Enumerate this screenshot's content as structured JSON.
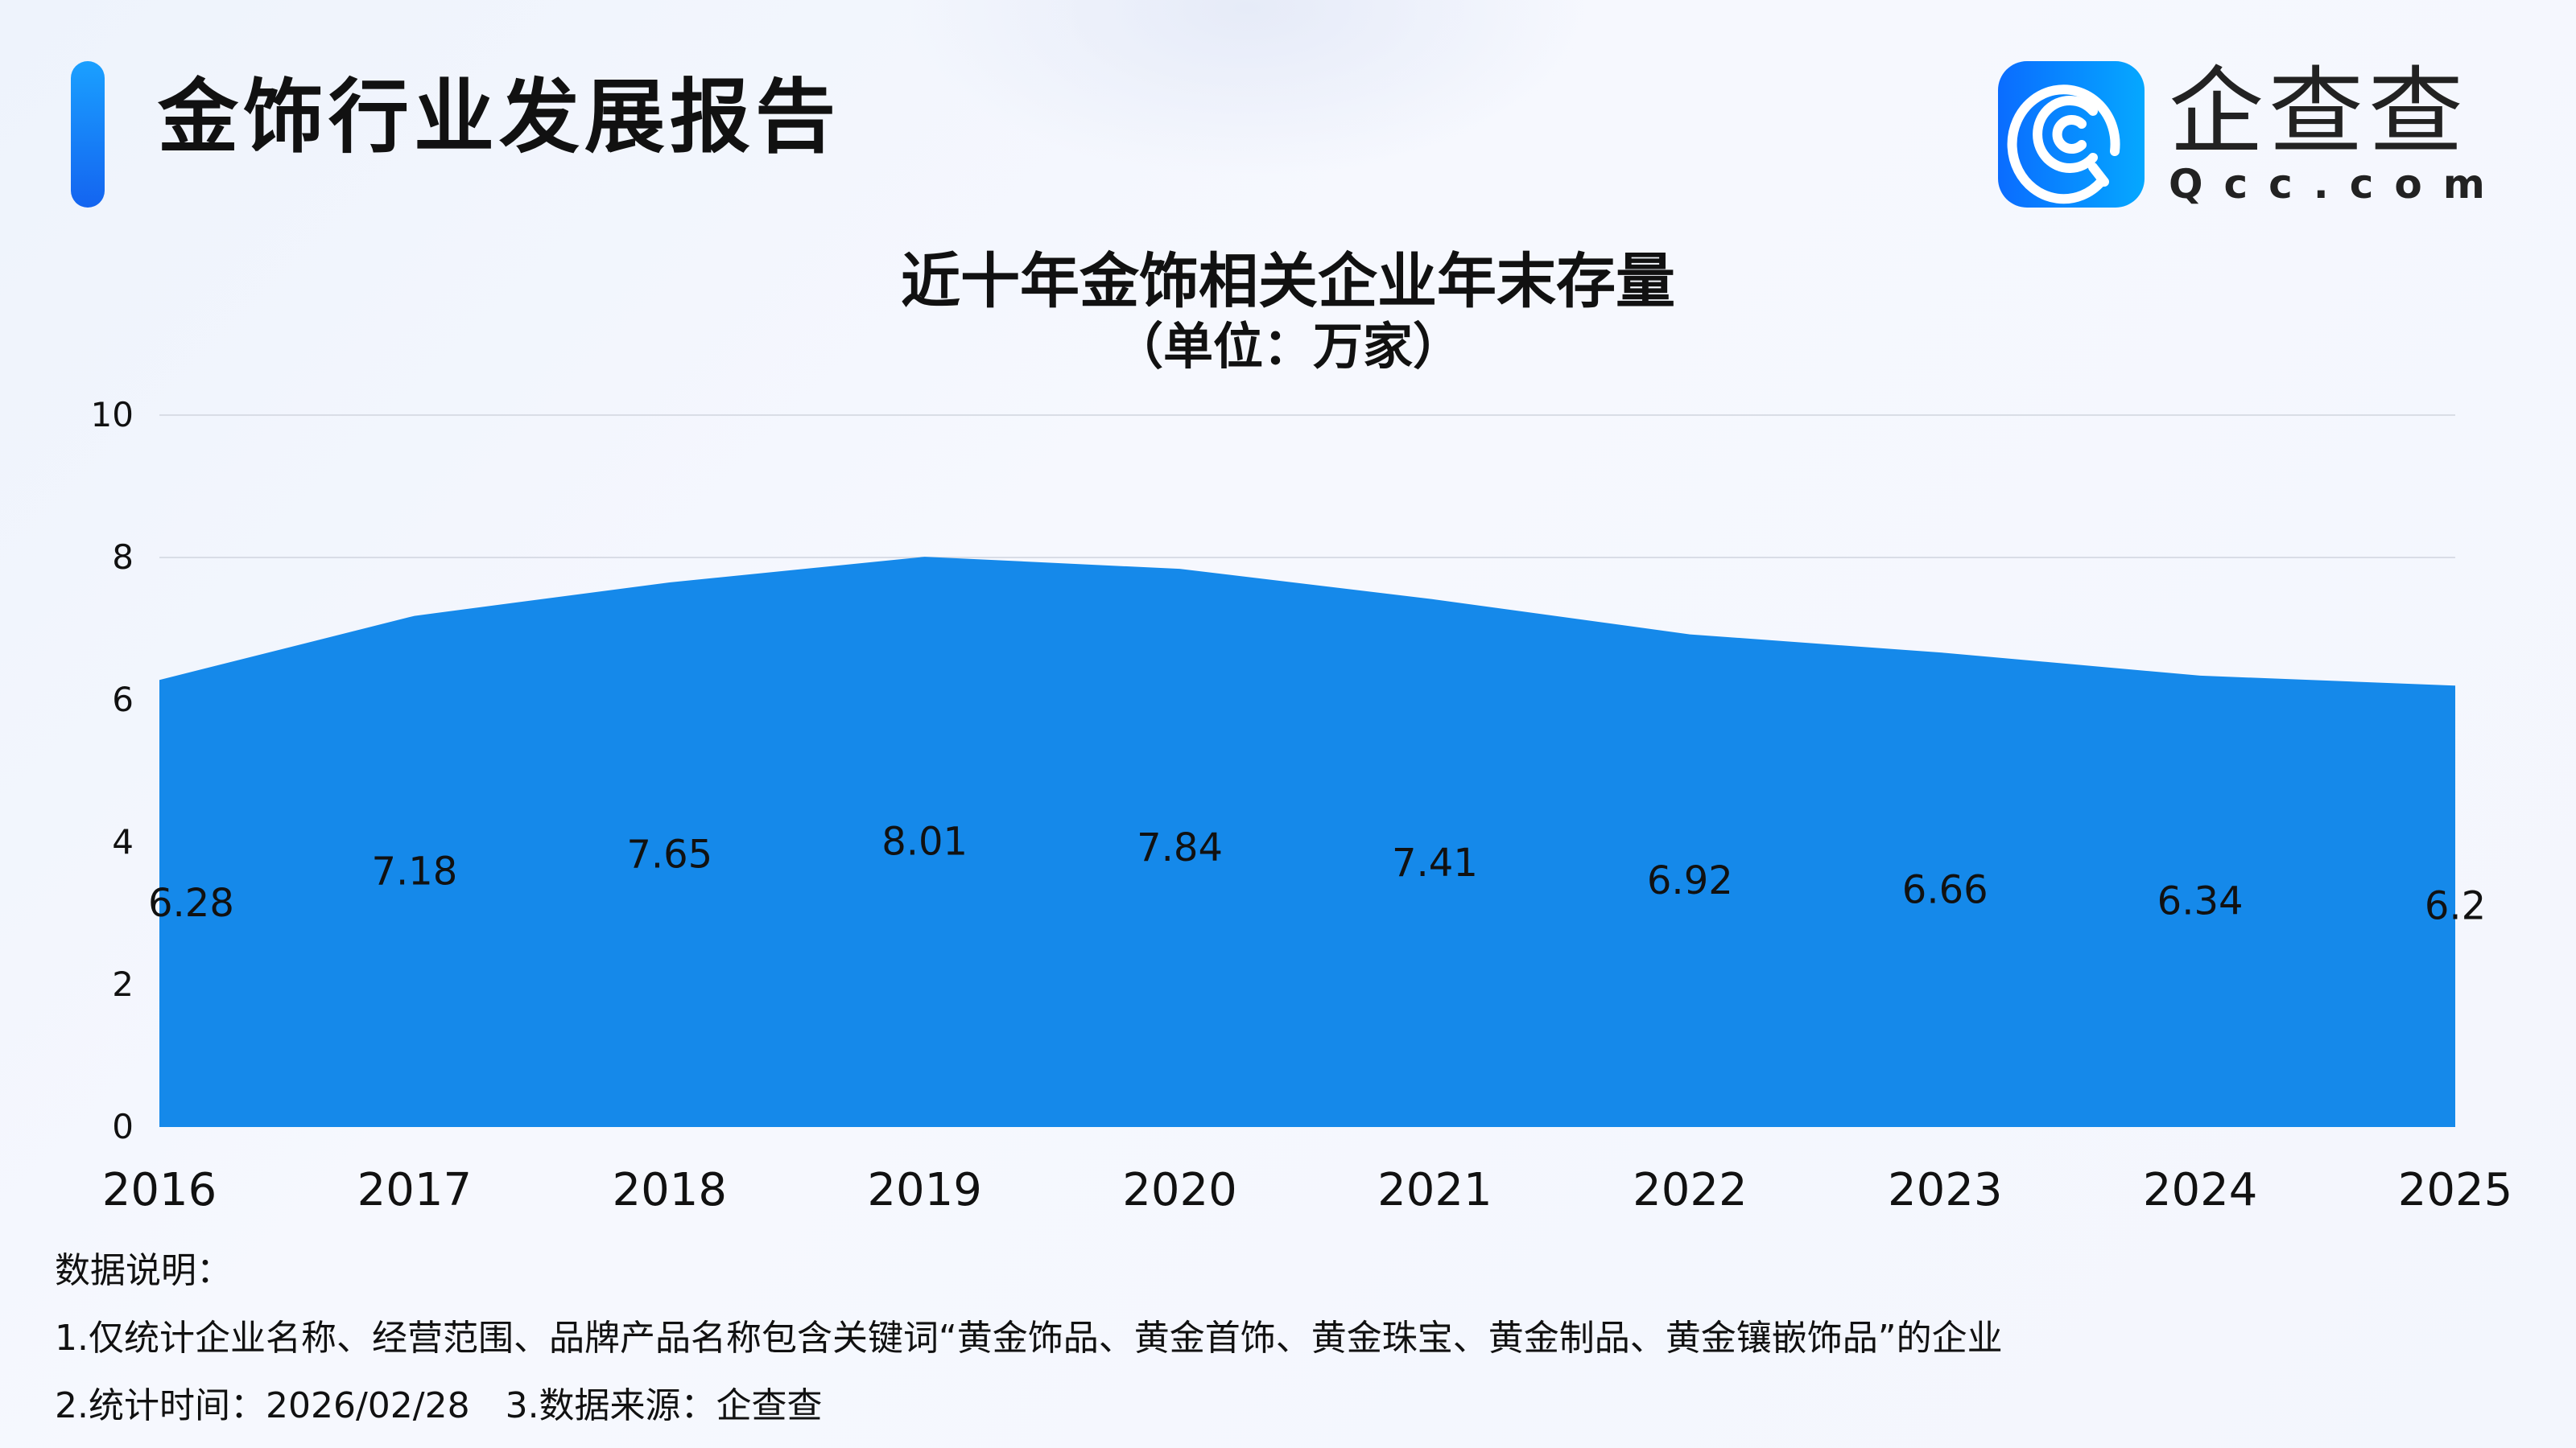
{
  "header": {
    "title": "金饰行业发展报告"
  },
  "logo": {
    "cn": "企查查",
    "en": "Qcc.com"
  },
  "colors": {
    "accent": "#1589ea",
    "grid": "#d9dde6"
  },
  "chart_data": {
    "type": "area",
    "title": "近十年金饰相关企业年末存量",
    "subtitle": "（单位：万家）",
    "categories": [
      "2016",
      "2017",
      "2018",
      "2019",
      "2020",
      "2021",
      "2022",
      "2023",
      "2024",
      "2025"
    ],
    "values": [
      6.28,
      7.18,
      7.65,
      8.01,
      7.84,
      7.41,
      6.92,
      6.66,
      6.34,
      6.2
    ],
    "value_labels": [
      "6.28",
      "7.18",
      "7.65",
      "8.01",
      "7.84",
      "7.41",
      "6.92",
      "6.66",
      "6.34",
      "6.2"
    ],
    "ylim": [
      0,
      10
    ],
    "yticks": [
      "0",
      "2",
      "4",
      "6",
      "8",
      "10"
    ],
    "grid": true,
    "color": "#1589ea"
  },
  "notes": {
    "heading": "数据说明：",
    "line1": "1.仅统计企业名称、经营范围、品牌产品名称包含关键词“黄金饰品、黄金首饰、黄金珠宝、黄金制品、黄金镶嵌饰品”的企业",
    "line2": "2.统计时间：2026/02/28　3.数据来源：企查查"
  }
}
